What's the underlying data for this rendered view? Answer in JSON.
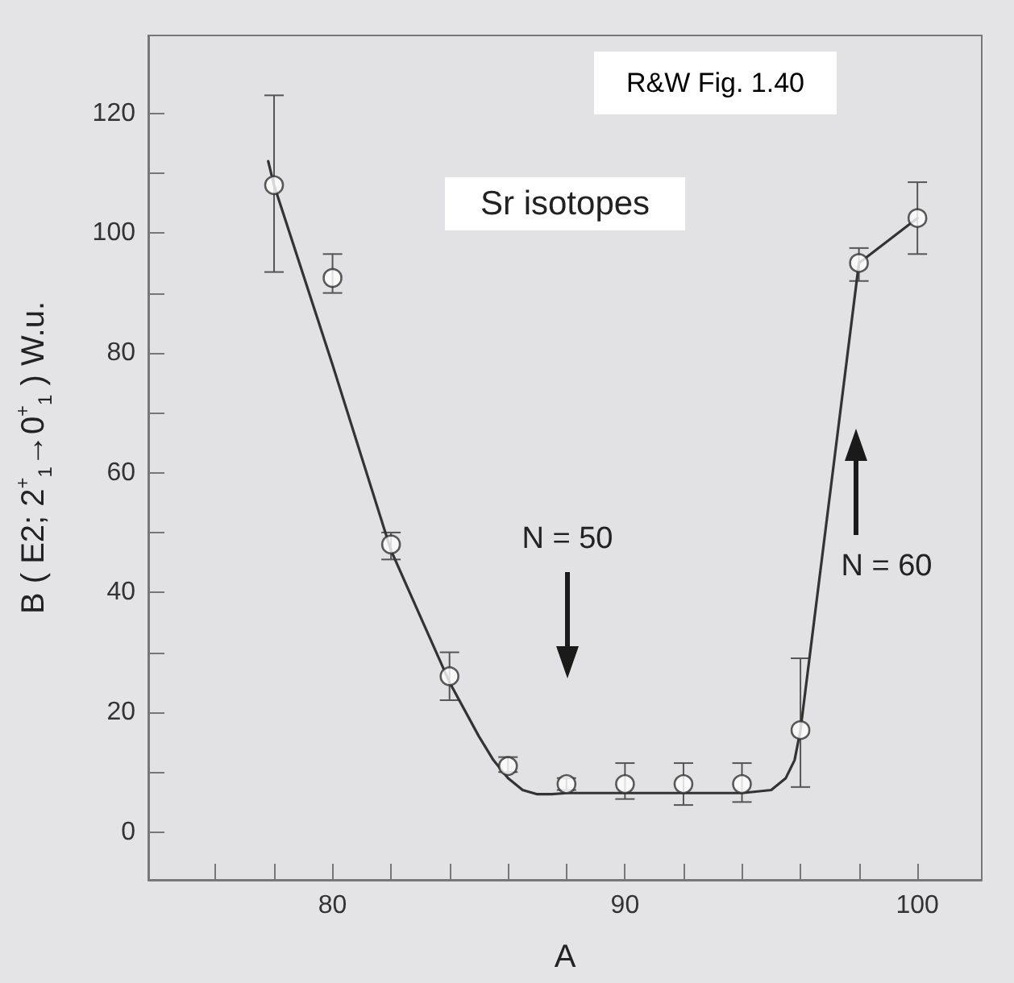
{
  "chart_data": {
    "type": "scatter",
    "title": "Sr isotopes",
    "xlabel": "A",
    "ylabel": "B ( E2; 2$^{+}$$_{1}$→0$^{+}$$_{1}$ ) W.u.",
    "annotations": [
      "R&W Fig. 1.40",
      "N = 50",
      "N = 60"
    ],
    "xlim": [
      73.7,
      102.2
    ],
    "xticks": [
      {
        "value": 76,
        "label": null
      },
      {
        "value": 78,
        "label": null
      },
      80,
      {
        "value": 82,
        "label": null
      },
      {
        "value": 84,
        "label": null
      },
      {
        "value": 86,
        "label": null
      },
      {
        "value": 88,
        "label": null
      },
      90,
      {
        "value": 92,
        "label": null
      },
      {
        "value": 94,
        "label": null
      },
      {
        "value": 96,
        "label": null
      },
      {
        "value": 98,
        "label": null
      },
      100
    ],
    "ylim": [
      -8,
      133
    ],
    "yticks": [
      0,
      {
        "value": 10,
        "label": null
      },
      20,
      {
        "value": 30,
        "label": null
      },
      40,
      {
        "value": 50,
        "label": null
      },
      60,
      {
        "value": 70,
        "label": null
      },
      80,
      {
        "value": 90,
        "label": null
      },
      100,
      {
        "value": 110,
        "label": null
      },
      120
    ],
    "grid": false,
    "marker": "circle",
    "series": [
      {
        "color": "#333333",
        "x": [
          78,
          80,
          82,
          84,
          86,
          88,
          90,
          92,
          94,
          96,
          98,
          100
        ],
        "values": [
          108,
          92.5,
          48,
          26,
          11,
          8,
          8,
          8,
          8,
          17,
          95,
          102.5
        ],
        "errors": [
          [
            93.5,
            123
          ],
          [
            90,
            96.5
          ],
          [
            45.5,
            50
          ],
          [
            22,
            30
          ],
          [
            10,
            12.5
          ],
          [
            7,
            9
          ],
          [
            5.5,
            11.5
          ],
          [
            4.5,
            11.5
          ],
          [
            5,
            11.5
          ],
          [
            7.5,
            29
          ],
          [
            92,
            97.5
          ],
          [
            96.5,
            108.5
          ]
        ]
      },
      {
        "type": "line",
        "color": "#333333",
        "marker": "none",
        "line_style": "solid",
        "x": [
          77.8,
          78,
          80,
          82,
          84,
          85,
          85.5,
          86,
          86.5,
          87,
          87.5,
          88,
          90,
          92,
          94,
          95,
          95.5,
          95.8,
          96,
          98,
          100
        ],
        "values": [
          112,
          108,
          78,
          47,
          25,
          16,
          12,
          9,
          7,
          6.3,
          6.3,
          6.5,
          6.5,
          6.5,
          6.5,
          7,
          9,
          12,
          17,
          95,
          102.5
        ]
      }
    ]
  }
}
